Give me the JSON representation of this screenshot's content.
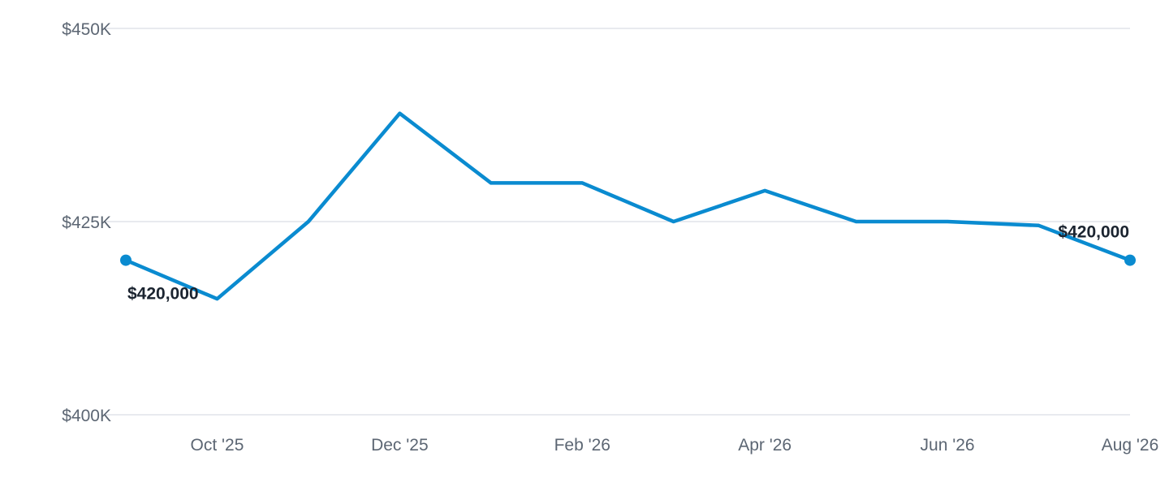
{
  "chart_data": {
    "type": "line",
    "title": "",
    "xlabel": "",
    "ylabel": "",
    "x": [
      "2025-09",
      "2025-10",
      "2025-11",
      "2025-12",
      "2026-01",
      "2026-02",
      "2026-03",
      "2026-04",
      "2026-05",
      "2026-06",
      "2026-07",
      "2026-08"
    ],
    "series": [
      {
        "values": [
          420000,
          415000,
          425000,
          439000,
          430000,
          430000,
          425000,
          429000,
          425000,
          425000,
          424500,
          420000
        ]
      }
    ],
    "ylim": [
      400000,
      450000
    ],
    "y_ticks": [
      {
        "value": 450000,
        "label": "$450K"
      },
      {
        "value": 425000,
        "label": "$425K"
      },
      {
        "value": 400000,
        "label": "$400K"
      }
    ],
    "x_ticks": [
      {
        "x": "2025-10",
        "label": "Oct '25"
      },
      {
        "x": "2025-12",
        "label": "Dec '25"
      },
      {
        "x": "2026-02",
        "label": "Feb '26"
      },
      {
        "x": "2026-04",
        "label": "Apr '26"
      },
      {
        "x": "2026-06",
        "label": "Jun '26"
      },
      {
        "x": "2026-08",
        "label": "Aug '26"
      }
    ],
    "annotations": [
      {
        "x": "2025-09",
        "text": "$420,000"
      },
      {
        "x": "2026-08",
        "text": "$420,000"
      }
    ],
    "grid": true,
    "legend": "none",
    "colors": {
      "line": "#0a8bd0",
      "grid": "#e1e4ea",
      "tick_text": "#5c6673",
      "label_text": "#1b2430"
    }
  }
}
